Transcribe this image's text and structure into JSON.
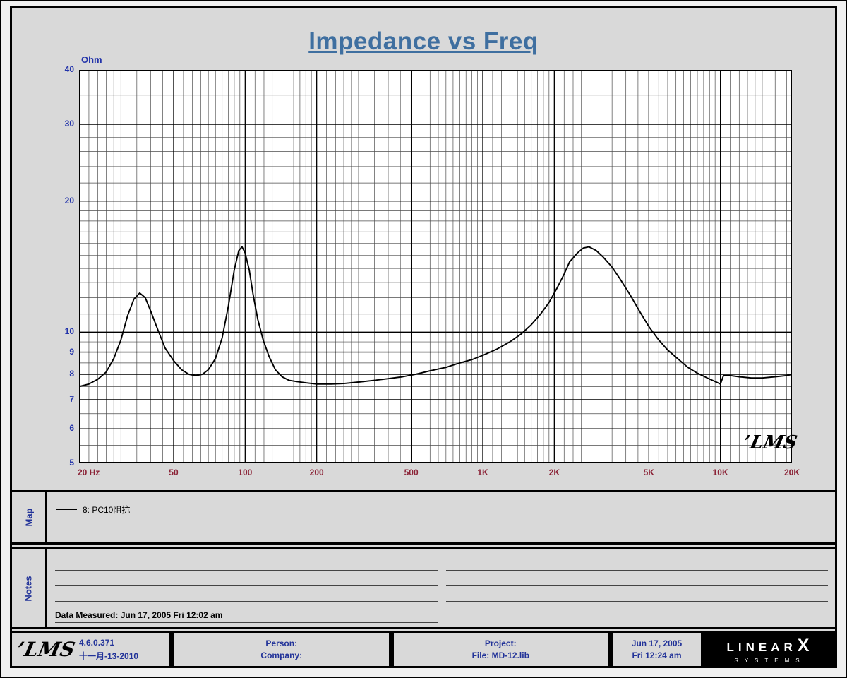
{
  "title": "Impedance vs Freq",
  "colors": {
    "title_color": "#3f6fa0",
    "y_axis_color": "#2233aa",
    "x_axis_color": "#8b2236",
    "navy_color": "#223399",
    "panel_bg": "#d9d9d9",
    "grid_minor": "#4d4d4d",
    "curve": "#000000"
  },
  "chart": {
    "y_unit_label": "Ohm",
    "watermark": "LMS"
  },
  "chart_data": {
    "type": "line",
    "title": "Impedance vs Freq",
    "xlabel": "Hz",
    "ylabel": "Ohm",
    "x_scale": "log",
    "y_scale": "log",
    "xlim": [
      20,
      20000
    ],
    "ylim": [
      5,
      40
    ],
    "legend_position": "map-panel-below",
    "grid_on": true,
    "x_ticks": [
      {
        "value": 20,
        "label": "20  Hz"
      },
      {
        "value": 50,
        "label": "50"
      },
      {
        "value": 100,
        "label": "100"
      },
      {
        "value": 200,
        "label": "200"
      },
      {
        "value": 500,
        "label": "500"
      },
      {
        "value": 1000,
        "label": "1K"
      },
      {
        "value": 2000,
        "label": "2K"
      },
      {
        "value": 5000,
        "label": "5K"
      },
      {
        "value": 10000,
        "label": "10K"
      },
      {
        "value": 20000,
        "label": "20K"
      }
    ],
    "grid": {
      "x_major": [
        20,
        50,
        100,
        200,
        500,
        1000,
        2000,
        5000,
        10000,
        20000
      ],
      "x_minor": [
        22,
        24,
        26,
        28,
        30,
        35,
        40,
        45,
        55,
        60,
        65,
        70,
        75,
        80,
        85,
        90,
        95,
        110,
        120,
        130,
        140,
        150,
        160,
        170,
        180,
        190,
        220,
        240,
        260,
        280,
        300,
        350,
        400,
        450,
        550,
        600,
        650,
        700,
        750,
        800,
        850,
        900,
        950,
        1100,
        1200,
        1300,
        1400,
        1500,
        1600,
        1700,
        1800,
        1900,
        2200,
        2400,
        2600,
        2800,
        3000,
        3500,
        4000,
        4500,
        5500,
        6000,
        6500,
        7000,
        7500,
        8000,
        8500,
        9000,
        9500,
        11000,
        12000,
        13000,
        14000,
        15000,
        16000,
        17000,
        18000,
        19000
      ],
      "y_major": [
        5,
        6,
        7,
        8,
        9,
        10,
        20,
        30,
        40
      ],
      "y_minor": [
        5.5,
        6.5,
        7.5,
        8.5,
        9.5,
        11,
        12,
        13,
        14,
        15,
        16,
        17,
        18,
        19,
        22,
        24,
        26,
        28,
        35
      ]
    },
    "series": [
      {
        "name": "8: PC10阻抗",
        "color": "#000000",
        "points": [
          [
            20,
            7.5
          ],
          [
            22,
            7.6
          ],
          [
            24,
            7.8
          ],
          [
            26,
            8.1
          ],
          [
            28,
            8.7
          ],
          [
            30,
            9.6
          ],
          [
            32,
            10.9
          ],
          [
            34,
            11.9
          ],
          [
            36,
            12.3
          ],
          [
            38,
            12.0
          ],
          [
            40,
            11.2
          ],
          [
            43,
            10.1
          ],
          [
            46,
            9.2
          ],
          [
            50,
            8.6
          ],
          [
            54,
            8.2
          ],
          [
            58,
            8.0
          ],
          [
            62,
            7.95
          ],
          [
            66,
            8.0
          ],
          [
            70,
            8.2
          ],
          [
            75,
            8.7
          ],
          [
            80,
            9.7
          ],
          [
            85,
            11.5
          ],
          [
            90,
            13.9
          ],
          [
            94,
            15.4
          ],
          [
            97,
            15.7
          ],
          [
            100,
            15.2
          ],
          [
            104,
            13.9
          ],
          [
            108,
            12.2
          ],
          [
            113,
            10.7
          ],
          [
            119,
            9.6
          ],
          [
            126,
            8.8
          ],
          [
            134,
            8.2
          ],
          [
            143,
            7.9
          ],
          [
            153,
            7.75
          ],
          [
            165,
            7.7
          ],
          [
            180,
            7.65
          ],
          [
            200,
            7.6
          ],
          [
            230,
            7.6
          ],
          [
            260,
            7.62
          ],
          [
            300,
            7.68
          ],
          [
            350,
            7.75
          ],
          [
            400,
            7.82
          ],
          [
            460,
            7.9
          ],
          [
            520,
            8.0
          ],
          [
            600,
            8.15
          ],
          [
            700,
            8.3
          ],
          [
            800,
            8.5
          ],
          [
            900,
            8.65
          ],
          [
            1000,
            8.85
          ],
          [
            1150,
            9.15
          ],
          [
            1300,
            9.5
          ],
          [
            1450,
            9.9
          ],
          [
            1600,
            10.4
          ],
          [
            1750,
            11.0
          ],
          [
            1900,
            11.7
          ],
          [
            2050,
            12.6
          ],
          [
            2200,
            13.6
          ],
          [
            2320,
            14.5
          ],
          [
            2400,
            14.8
          ],
          [
            2500,
            15.2
          ],
          [
            2650,
            15.6
          ],
          [
            2800,
            15.7
          ],
          [
            3000,
            15.4
          ],
          [
            3200,
            14.9
          ],
          [
            3500,
            14.1
          ],
          [
            3800,
            13.2
          ],
          [
            4200,
            12.1
          ],
          [
            4600,
            11.1
          ],
          [
            5000,
            10.3
          ],
          [
            5500,
            9.6
          ],
          [
            6000,
            9.1
          ],
          [
            6600,
            8.7
          ],
          [
            7300,
            8.3
          ],
          [
            8000,
            8.05
          ],
          [
            8800,
            7.85
          ],
          [
            9500,
            7.7
          ],
          [
            10000,
            7.6
          ],
          [
            10300,
            7.95
          ],
          [
            11000,
            7.95
          ],
          [
            12000,
            7.9
          ],
          [
            13500,
            7.85
          ],
          [
            15000,
            7.85
          ],
          [
            17000,
            7.9
          ],
          [
            19000,
            7.95
          ],
          [
            20000,
            8.0
          ]
        ]
      }
    ]
  },
  "map_panel": {
    "label": "Map",
    "legend": [
      {
        "name": "8: PC10阻抗",
        "color": "#000000"
      }
    ]
  },
  "notes_panel": {
    "label": "Notes",
    "data_measured": "Data Measured: Jun 17, 2005  Fri 12:02 am"
  },
  "footer": {
    "logo_text": "LMS",
    "version": "4.6.0.371",
    "version_date": "十一月-13-2010",
    "person_label": "Person:",
    "company_label": "Company:",
    "project_label": "Project:",
    "file_label": "File: MD-12.lib",
    "date": "Jun 17, 2005",
    "time": "Fri 12:24 am",
    "brand": {
      "name": "LINEAR",
      "x": "X",
      "systems": "SYSTEMS"
    }
  }
}
